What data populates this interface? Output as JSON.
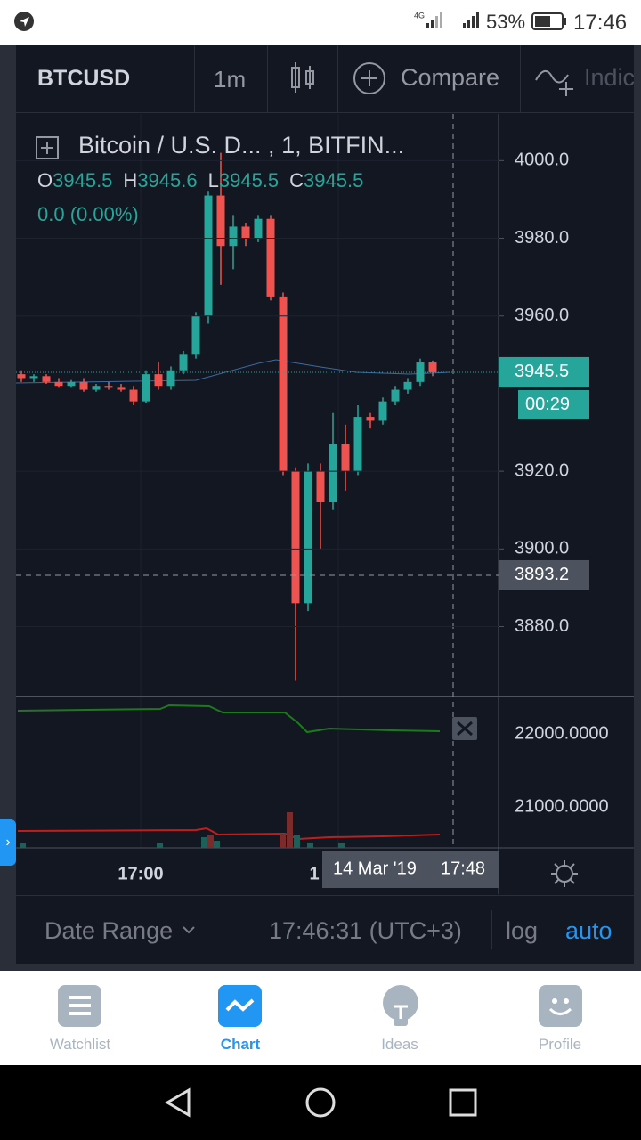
{
  "status_bar": {
    "battery": "53%",
    "time": "17:46"
  },
  "toolbar": {
    "symbol": "BTCUSD",
    "interval": "1m",
    "compare": "Compare",
    "indicators": "Indic"
  },
  "legend": {
    "title": "Bitcoin / U.S. D...  , 1, BITFIN...",
    "o_label": "O",
    "o": "3945.5",
    "h_label": "H",
    "h": "3945.6",
    "l_label": "L",
    "l": "3945.5",
    "c_label": "C",
    "c": "3945.5",
    "change": "0.0 (0.00%)"
  },
  "chart_data": {
    "type": "candlestick",
    "up_color": "#26a69a",
    "down_color": "#ef5350",
    "open": [
      3945,
      3944,
      3944.5,
      3943,
      3942,
      3943,
      3941,
      3942,
      3941.5,
      3941,
      3938,
      3945,
      3942,
      3946,
      3950,
      3960,
      3991,
      3978,
      3983,
      3980,
      3985,
      3965,
      3920,
      3886,
      3920,
      3912,
      3927,
      3920,
      3934,
      3933,
      3938,
      3941,
      3943,
      3948
    ],
    "high": [
      3946,
      3945,
      3945,
      3944,
      3943.5,
      3944,
      3942.5,
      3943,
      3942.5,
      3942,
      3946,
      3948,
      3947,
      3951,
      3961,
      3992,
      4002,
      3986,
      3984,
      3986,
      3986,
      3966,
      3921,
      3922,
      3922,
      3935,
      3932,
      3937,
      3935,
      3939,
      3942,
      3944,
      3949,
      3948.5
    ],
    "low": [
      3943,
      3943,
      3942.5,
      3941.5,
      3941.5,
      3940.5,
      3940.5,
      3941,
      3940.5,
      3937,
      3937.5,
      3941,
      3941,
      3945,
      3949,
      3958,
      3968,
      3972,
      3978,
      3979,
      3964,
      3919,
      3866,
      3884,
      3900,
      3910,
      3915,
      3919,
      3931,
      3932,
      3937,
      3940,
      3942,
      3944.5
    ],
    "close": [
      3944,
      3944.5,
      3943,
      3942,
      3943,
      3941,
      3942,
      3941.5,
      3941,
      3938,
      3945,
      3942,
      3946,
      3950,
      3960,
      3991,
      3978,
      3983,
      3980,
      3985,
      3965,
      3920,
      3886,
      3920,
      3912,
      3927,
      3920,
      3934,
      3933,
      3938,
      3941,
      3943,
      3948,
      3945.5
    ],
    "ylim": [
      3862,
      4012
    ],
    "yticks": [
      {
        "value": 4000,
        "label": "4000.0"
      },
      {
        "value": 3980,
        "label": "3980.0"
      },
      {
        "value": 3960,
        "label": "3960.0"
      },
      {
        "value": 3920,
        "label": "3920.0"
      },
      {
        "value": 3900,
        "label": "3900.0"
      },
      {
        "value": 3880,
        "label": "3880.0"
      }
    ],
    "last_price": {
      "value": 3945.5,
      "label": "3945.5"
    },
    "countdown": "00:29",
    "crosshair_price": {
      "value": 3893.2,
      "label": "3893.2"
    }
  },
  "volume_pane": {
    "yticks": [
      "22000.0000",
      "21000.0000"
    ]
  },
  "x_axis": {
    "ticks": [
      "17:00",
      "1"
    ],
    "crosshair_date": "14 Mar '19",
    "crosshair_time": "17:48"
  },
  "bottom_bar": {
    "date_range": "Date Range",
    "clock": "17:46:31 (UTC+3)",
    "log": "log",
    "auto": "auto"
  },
  "tabs": [
    "Watchlist",
    "Chart",
    "Ideas",
    "Profile"
  ]
}
